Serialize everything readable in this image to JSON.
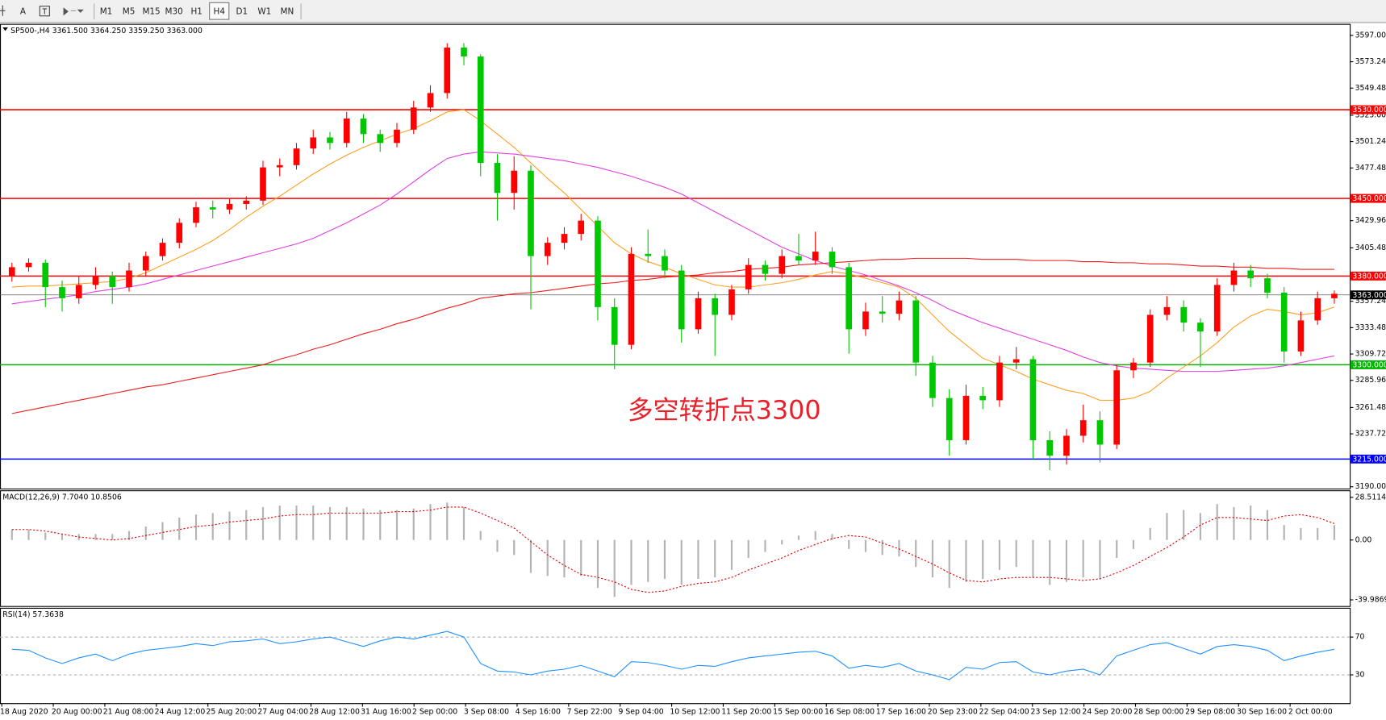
{
  "toolbar": {
    "text_tool": "A",
    "timeframes": [
      "M1",
      "M5",
      "M15",
      "M30",
      "H1",
      "H4",
      "D1",
      "W1",
      "MN"
    ],
    "active": "H4"
  },
  "chart_data": [
    {
      "type": "candlestick",
      "title": "SP500-,H4  3361.500 3364.250 3359.250 3363.000",
      "up_color": "#ff0000",
      "down_color": "#00c800",
      "ylim": [
        3188.4,
        3607.4
      ],
      "yticks": [
        {
          "value": 3597,
          "label": "3597.000"
        },
        {
          "value": 3573.24,
          "label": "3573.240"
        },
        {
          "value": 3549.48,
          "label": "3549.480"
        },
        {
          "value": 3525,
          "label": "3525.000"
        },
        {
          "value": 3501.24,
          "label": "3501.240"
        },
        {
          "value": 3477.48,
          "label": "3477.480"
        },
        {
          "value": 3429.96,
          "label": "3429.960"
        },
        {
          "value": 3405.48,
          "label": "3405.480"
        },
        {
          "value": 3357.24,
          "label": "3357.240"
        },
        {
          "value": 3333.48,
          "label": "3333.480"
        },
        {
          "value": 3309.72,
          "label": "3309.720"
        },
        {
          "value": 3285.96,
          "label": "3285.960"
        },
        {
          "value": 3261.48,
          "label": "3261.480"
        },
        {
          "value": 3237.72,
          "label": "3237.720"
        },
        {
          "value": 3190,
          "label": "3190.000"
        }
      ],
      "grid": false,
      "levels": [
        {
          "value": 3530,
          "label": "3530.000",
          "color": "#ff0000"
        },
        {
          "value": 3450,
          "label": "3450.000",
          "color": "#ff0000"
        },
        {
          "value": 3380,
          "label": "3380.000",
          "color": "#ff0000"
        },
        {
          "value": 3363,
          "label": "3363.000",
          "color": "#5a5a5a"
        },
        {
          "value": 3300,
          "label": "3300.000",
          "color": "#00b400"
        },
        {
          "value": 3215,
          "label": "3215.000",
          "color": "#0000ff"
        }
      ],
      "annotation": {
        "text": "多空转折点3300",
        "color": "#e8202a"
      },
      "x_labels": [
        "18 Aug 2020",
        "20 Aug 00:00",
        "21 Aug 08:00",
        "24 Aug 12:00",
        "25 Aug 20:00",
        "27 Aug 04:00",
        "28 Aug 12:00",
        "31 Aug 16:00",
        "2 Sep 00:00",
        "3 Sep 08:00",
        "4 Sep 16:00",
        "7 Sep 22:00",
        "9 Sep 04:00",
        "10 Sep 12:00",
        "11 Sep 20:00",
        "15 Sep 00:00",
        "16 Sep 08:00",
        "17 Sep 16:00",
        "20 Sep 23:00",
        "22 Sep 04:00",
        "23 Sep 12:00",
        "24 Sep 20:00",
        "28 Sep 00:00",
        "29 Sep 08:00",
        "30 Sep 16:00",
        "2 Oct 00:00"
      ],
      "ohlc": [
        [
          3380,
          3392,
          3375,
          3388
        ],
        [
          3388,
          3396,
          3384,
          3392
        ],
        [
          3392,
          3395,
          3352,
          3370
        ],
        [
          3370,
          3376,
          3348,
          3360
        ],
        [
          3360,
          3380,
          3355,
          3372
        ],
        [
          3372,
          3388,
          3368,
          3380
        ],
        [
          3380,
          3384,
          3355,
          3370
        ],
        [
          3370,
          3392,
          3366,
          3385
        ],
        [
          3385,
          3402,
          3380,
          3398
        ],
        [
          3398,
          3414,
          3394,
          3410
        ],
        [
          3410,
          3432,
          3405,
          3428
        ],
        [
          3428,
          3447,
          3424,
          3442
        ],
        [
          3442,
          3448,
          3432,
          3440
        ],
        [
          3440,
          3450,
          3436,
          3445
        ],
        [
          3445,
          3452,
          3440,
          3448
        ],
        [
          3448,
          3484,
          3444,
          3478
        ],
        [
          3478,
          3486,
          3470,
          3480
        ],
        [
          3480,
          3500,
          3476,
          3495
        ],
        [
          3495,
          3512,
          3490,
          3505
        ],
        [
          3505,
          3510,
          3494,
          3500
        ],
        [
          3500,
          3528,
          3496,
          3522
        ],
        [
          3522,
          3526,
          3500,
          3508
        ],
        [
          3508,
          3512,
          3492,
          3500
        ],
        [
          3500,
          3518,
          3496,
          3512
        ],
        [
          3512,
          3538,
          3508,
          3532
        ],
        [
          3532,
          3552,
          3528,
          3545
        ],
        [
          3545,
          3590,
          3540,
          3586
        ],
        [
          3586,
          3590,
          3570,
          3578
        ],
        [
          3578,
          3580,
          3470,
          3482
        ],
        [
          3482,
          3490,
          3430,
          3455
        ],
        [
          3455,
          3488,
          3440,
          3475
        ],
        [
          3475,
          3480,
          3350,
          3398
        ],
        [
          3398,
          3415,
          3390,
          3410
        ],
        [
          3410,
          3424,
          3404,
          3418
        ],
        [
          3418,
          3436,
          3412,
          3430
        ],
        [
          3430,
          3434,
          3340,
          3352
        ],
        [
          3352,
          3360,
          3296,
          3318
        ],
        [
          3318,
          3406,
          3314,
          3400
        ],
        [
          3400,
          3422,
          3392,
          3398
        ],
        [
          3398,
          3404,
          3378,
          3385
        ],
        [
          3385,
          3390,
          3320,
          3332
        ],
        [
          3332,
          3366,
          3328,
          3360
        ],
        [
          3360,
          3364,
          3308,
          3345
        ],
        [
          3345,
          3372,
          3340,
          3368
        ],
        [
          3368,
          3396,
          3364,
          3390
        ],
        [
          3390,
          3394,
          3376,
          3382
        ],
        [
          3382,
          3404,
          3378,
          3398
        ],
        [
          3398,
          3418,
          3390,
          3394
        ],
        [
          3394,
          3420,
          3390,
          3402
        ],
        [
          3402,
          3406,
          3382,
          3388
        ],
        [
          3388,
          3392,
          3310,
          3332
        ],
        [
          3332,
          3356,
          3326,
          3348
        ],
        [
          3348,
          3362,
          3338,
          3346
        ],
        [
          3346,
          3366,
          3340,
          3358
        ],
        [
          3358,
          3362,
          3290,
          3302
        ],
        [
          3302,
          3308,
          3262,
          3270
        ],
        [
          3270,
          3278,
          3218,
          3232
        ],
        [
          3232,
          3282,
          3228,
          3272
        ],
        [
          3272,
          3280,
          3260,
          3268
        ],
        [
          3268,
          3308,
          3262,
          3302
        ],
        [
          3302,
          3316,
          3296,
          3305
        ],
        [
          3305,
          3308,
          3215,
          3232
        ],
        [
          3232,
          3240,
          3205,
          3218
        ],
        [
          3218,
          3242,
          3210,
          3236
        ],
        [
          3236,
          3264,
          3230,
          3250
        ],
        [
          3250,
          3258,
          3212,
          3228
        ],
        [
          3228,
          3300,
          3224,
          3295
        ],
        [
          3295,
          3306,
          3288,
          3302
        ],
        [
          3302,
          3350,
          3298,
          3345
        ],
        [
          3345,
          3362,
          3340,
          3352
        ],
        [
          3352,
          3358,
          3330,
          3338
        ],
        [
          3338,
          3342,
          3298,
          3330
        ],
        [
          3330,
          3378,
          3326,
          3372
        ],
        [
          3372,
          3392,
          3366,
          3385
        ],
        [
          3385,
          3390,
          3370,
          3378
        ],
        [
          3378,
          3382,
          3360,
          3365
        ],
        [
          3365,
          3370,
          3302,
          3312
        ],
        [
          3312,
          3348,
          3308,
          3340
        ],
        [
          3340,
          3366,
          3336,
          3360
        ],
        [
          3360,
          3367,
          3355,
          3364
        ]
      ],
      "moving_averages": [
        {
          "color": "#ffa020",
          "values": [
            3370,
            3371,
            3371,
            3372,
            3373,
            3374,
            3375,
            3378,
            3383,
            3390,
            3397,
            3404,
            3412,
            3422,
            3433,
            3443,
            3452,
            3462,
            3472,
            3481,
            3489,
            3496,
            3502,
            3508,
            3513,
            3520,
            3528,
            3530,
            3520,
            3508,
            3496,
            3482,
            3468,
            3455,
            3440,
            3425,
            3410,
            3400,
            3393,
            3388,
            3382,
            3377,
            3372,
            3370,
            3370,
            3372,
            3374,
            3377,
            3381,
            3384,
            3382,
            3378,
            3374,
            3370,
            3360,
            3345,
            3330,
            3318,
            3306,
            3300,
            3294,
            3287,
            3282,
            3277,
            3274,
            3268,
            3268,
            3270,
            3276,
            3288,
            3298,
            3308,
            3320,
            3334,
            3344,
            3350,
            3348,
            3345,
            3347,
            3352
          ]
        },
        {
          "color": "#e040e0",
          "values": [
            3355,
            3357,
            3359,
            3361,
            3363,
            3366,
            3368,
            3370,
            3373,
            3377,
            3381,
            3385,
            3389,
            3393,
            3397,
            3401,
            3405,
            3409,
            3414,
            3421,
            3428,
            3436,
            3444,
            3454,
            3465,
            3476,
            3486,
            3490,
            3492,
            3491,
            3490,
            3488,
            3486,
            3484,
            3481,
            3478,
            3474,
            3470,
            3465,
            3460,
            3454,
            3446,
            3438,
            3430,
            3422,
            3414,
            3406,
            3400,
            3394,
            3389,
            3385,
            3381,
            3376,
            3371,
            3365,
            3358,
            3350,
            3344,
            3338,
            3333,
            3328,
            3323,
            3318,
            3313,
            3307,
            3302,
            3299,
            3297,
            3296,
            3295,
            3294,
            3294,
            3294,
            3295,
            3296,
            3297,
            3299,
            3302,
            3305,
            3308
          ]
        },
        {
          "color": "#ee1c1c",
          "values": [
            3256,
            3259,
            3262,
            3265,
            3268,
            3271,
            3274,
            3277,
            3280,
            3282,
            3285,
            3288,
            3291,
            3294,
            3297,
            3300,
            3305,
            3309,
            3314,
            3318,
            3323,
            3328,
            3332,
            3337,
            3341,
            3346,
            3351,
            3355,
            3360,
            3362,
            3364,
            3365,
            3367,
            3369,
            3371,
            3373,
            3374,
            3376,
            3377,
            3379,
            3380,
            3381,
            3383,
            3384,
            3386,
            3387,
            3388,
            3390,
            3391,
            3392,
            3393,
            3394,
            3395,
            3395,
            3396,
            3396,
            3396,
            3396,
            3395,
            3395,
            3395,
            3394,
            3394,
            3394,
            3393,
            3393,
            3392,
            3392,
            3391,
            3391,
            3390,
            3389,
            3389,
            3388,
            3388,
            3387,
            3387,
            3386,
            3386,
            3386
          ]
        }
      ]
    },
    {
      "type": "macd",
      "title": "MACD(12,26,9) 7.7040 10.8506",
      "ylim": [
        -44.1,
        33.2
      ],
      "yticks": [
        28.5114,
        {
          "value": 0,
          "label": "0.00"
        },
        -39.9869
      ],
      "histogram_color": "#b4b4b4",
      "signal_color": "#e00000",
      "histogram": [
        7,
        7,
        5,
        4,
        4,
        4,
        4,
        6,
        9,
        12,
        15,
        17,
        18,
        19,
        20,
        22,
        23,
        23,
        23,
        22,
        22,
        21,
        20,
        20,
        21,
        24,
        25,
        22,
        6,
        -8,
        -10,
        -22,
        -24,
        -25,
        -24,
        -32,
        -38,
        -30,
        -28,
        -26,
        -30,
        -26,
        -25,
        -20,
        -12,
        -8,
        -3,
        3,
        6,
        4,
        -6,
        -8,
        -10,
        -11,
        -18,
        -25,
        -32,
        -28,
        -26,
        -20,
        -18,
        -25,
        -30,
        -28,
        -25,
        -26,
        -12,
        -6,
        8,
        18,
        20,
        18,
        24,
        22,
        23,
        20,
        10,
        8,
        8,
        10
      ],
      "signal": [
        7,
        7,
        6,
        4,
        2,
        1,
        0,
        1,
        3,
        5,
        7,
        9,
        10,
        12,
        13,
        14,
        16,
        17,
        17,
        18,
        18,
        18,
        18,
        19,
        19,
        20,
        22,
        22,
        18,
        13,
        8,
        -1,
        -10,
        -17,
        -23,
        -25,
        -28,
        -33,
        -35,
        -34,
        -31,
        -29,
        -28,
        -25,
        -20,
        -16,
        -12,
        -7,
        -3,
        1,
        3,
        2,
        -2,
        -6,
        -11,
        -16,
        -22,
        -27,
        -28,
        -26,
        -25,
        -25,
        -25,
        -26,
        -27,
        -26,
        -22,
        -17,
        -11,
        -5,
        2,
        10,
        15,
        15,
        14,
        13,
        16,
        17,
        15,
        11
      ]
    },
    {
      "type": "line",
      "title": "RSI(14) 57.3638",
      "ylim": [
        0,
        101
      ],
      "yticks": [
        70,
        30
      ],
      "tick_lines": "dashed",
      "color": "#1e90ff",
      "values": [
        57,
        56,
        48,
        42,
        48,
        52,
        45,
        52,
        56,
        58,
        60,
        63,
        61,
        65,
        66,
        68,
        63,
        65,
        68,
        70,
        65,
        60,
        66,
        70,
        68,
        72,
        76,
        70,
        42,
        34,
        33,
        30,
        34,
        36,
        40,
        34,
        28,
        44,
        43,
        40,
        36,
        40,
        39,
        44,
        48,
        50,
        52,
        54,
        55,
        50,
        37,
        40,
        38,
        42,
        34,
        30,
        25,
        38,
        36,
        43,
        44,
        33,
        30,
        34,
        36,
        30,
        50,
        56,
        62,
        64,
        58,
        52,
        60,
        62,
        60,
        56,
        45,
        50,
        54,
        57
      ]
    }
  ]
}
